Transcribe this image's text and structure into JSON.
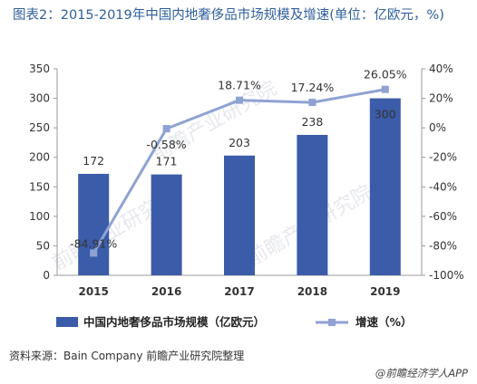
{
  "title": "图表2：2015-2019年中国内地奢侈品市场规模及增速(单位：亿欧元，%)",
  "source": "资料来源：Bain Company 前瞻产业研究院整理",
  "credit": "@前瞻经济学人APP",
  "watermark": "前瞻产业研究院",
  "colors": {
    "bar": "#3b5ca8",
    "line": "#8fa2d3",
    "title": "#2f5f9e"
  },
  "chart_data": {
    "type": "bar",
    "categories": [
      "2015",
      "2016",
      "2017",
      "2018",
      "2019"
    ],
    "series": [
      {
        "name": "中国内地奢侈品市场规模（亿欧元）",
        "type": "bar",
        "axis": "left",
        "values": [
          172,
          171,
          203,
          238,
          300
        ],
        "labels": [
          "172",
          "171",
          "203",
          "238",
          "300"
        ]
      },
      {
        "name": "增速（%）",
        "type": "line",
        "axis": "right",
        "values": [
          -84.91,
          -0.58,
          18.71,
          17.24,
          26.05
        ],
        "labels": [
          "-84.91%",
          "-0.58%",
          "18.71%",
          "17.24%",
          "26.05%"
        ]
      }
    ],
    "yleft": {
      "ylim": [
        0,
        350
      ],
      "ticks": [
        "0",
        "50",
        "100",
        "150",
        "200",
        "250",
        "300",
        "350"
      ]
    },
    "yright": {
      "ylim": [
        -100,
        40
      ],
      "ticks": [
        "-100%",
        "-80%",
        "-60%",
        "-40%",
        "-20%",
        "0%",
        "20%",
        "40%"
      ]
    },
    "legend_position": "bottom",
    "grid": false
  }
}
